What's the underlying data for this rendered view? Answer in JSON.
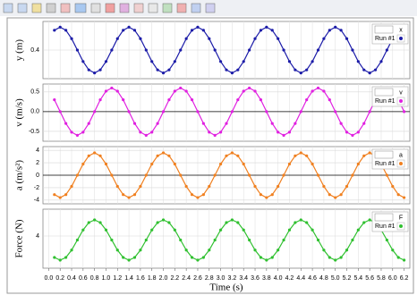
{
  "chart_data": [
    {
      "type": "line",
      "ylabel": "y (m)",
      "legend_symbol": "x",
      "x": [
        0.1,
        0.2,
        0.3,
        0.4,
        0.5,
        0.6,
        0.7,
        0.8,
        0.9,
        1.0,
        1.1,
        1.2,
        1.3,
        1.4,
        1.5,
        1.6,
        1.7,
        1.8,
        1.9,
        2.0,
        2.1,
        2.2,
        2.3,
        2.4,
        2.5,
        2.6,
        2.7,
        2.8,
        2.9,
        3.0,
        3.1,
        3.2,
        3.3,
        3.4,
        3.5,
        3.6,
        3.7,
        3.8,
        3.9,
        4.0,
        4.1,
        4.2,
        4.3,
        4.4,
        4.5,
        4.6,
        4.7,
        4.8,
        4.9,
        5.0,
        5.1,
        5.2,
        5.3,
        5.4,
        5.5,
        5.6,
        5.7,
        5.8,
        5.9,
        6.0,
        6.1,
        6.2
      ],
      "series": [
        {
          "name": "Run #1",
          "color": "#1c1ca8",
          "values": [
            0.504,
            0.52,
            0.504,
            0.46,
            0.4,
            0.34,
            0.296,
            0.28,
            0.296,
            0.34,
            0.4,
            0.46,
            0.504,
            0.52,
            0.504,
            0.46,
            0.4,
            0.34,
            0.296,
            0.28,
            0.296,
            0.34,
            0.4,
            0.46,
            0.504,
            0.52,
            0.504,
            0.46,
            0.4,
            0.34,
            0.296,
            0.28,
            0.296,
            0.34,
            0.4,
            0.46,
            0.504,
            0.52,
            0.504,
            0.46,
            0.4,
            0.34,
            0.296,
            0.28,
            0.296,
            0.34,
            0.4,
            0.46,
            0.504,
            0.52,
            0.504,
            0.46,
            0.4,
            0.34,
            0.296,
            0.28,
            0.296,
            0.34,
            0.4,
            0.46,
            0.504,
            0.52
          ]
        }
      ],
      "xlim": [
        -0.1,
        6.3
      ],
      "ylim": [
        0.25,
        0.55
      ],
      "yticks": [
        0.4
      ],
      "grid": true
    },
    {
      "type": "line",
      "ylabel": "v (m/s)",
      "legend_symbol": "v",
      "x": [
        0.1,
        0.2,
        0.3,
        0.4,
        0.5,
        0.6,
        0.7,
        0.8,
        0.9,
        1.0,
        1.1,
        1.2,
        1.3,
        1.4,
        1.5,
        1.6,
        1.7,
        1.8,
        1.9,
        2.0,
        2.1,
        2.2,
        2.3,
        2.4,
        2.5,
        2.6,
        2.7,
        2.8,
        2.9,
        3.0,
        3.1,
        3.2,
        3.3,
        3.4,
        3.5,
        3.6,
        3.7,
        3.8,
        3.9,
        4.0,
        4.1,
        4.2,
        4.3,
        4.4,
        4.5,
        4.6,
        4.7,
        4.8,
        4.9,
        5.0,
        5.1,
        5.2,
        5.3,
        5.4,
        5.5,
        5.6,
        5.7,
        5.8,
        5.9,
        6.0,
        6.1,
        6.2
      ],
      "series": [
        {
          "name": "Run #1",
          "color": "#e020e0",
          "values": [
            0.3,
            0,
            -0.3,
            -0.52,
            -0.6,
            -0.52,
            -0.3,
            0,
            0.3,
            0.52,
            0.6,
            0.52,
            0.3,
            0,
            -0.3,
            -0.52,
            -0.6,
            -0.52,
            -0.3,
            0,
            0.3,
            0.52,
            0.6,
            0.52,
            0.3,
            0,
            -0.3,
            -0.52,
            -0.6,
            -0.52,
            -0.3,
            0,
            0.3,
            0.52,
            0.6,
            0.52,
            0.3,
            0,
            -0.3,
            -0.52,
            -0.6,
            -0.52,
            -0.3,
            0,
            0.3,
            0.52,
            0.6,
            0.52,
            0.3,
            0,
            -0.3,
            -0.52,
            -0.6,
            -0.52,
            -0.3,
            0,
            0.3,
            0.52,
            0.6,
            0.52,
            0.3,
            0
          ]
        }
      ],
      "xlim": [
        -0.1,
        6.3
      ],
      "ylim": [
        -0.75,
        0.7
      ],
      "yticks": [
        -0.5,
        {
          "value": 0,
          "label": "0.0"
        },
        0.5
      ],
      "grid": true
    },
    {
      "type": "line",
      "ylabel": "a (m/s²)",
      "legend_symbol": "a",
      "x": [
        0.1,
        0.2,
        0.3,
        0.4,
        0.5,
        0.6,
        0.7,
        0.8,
        0.9,
        1.0,
        1.1,
        1.2,
        1.3,
        1.4,
        1.5,
        1.6,
        1.7,
        1.8,
        1.9,
        2.0,
        2.1,
        2.2,
        2.3,
        2.4,
        2.5,
        2.6,
        2.7,
        2.8,
        2.9,
        3.0,
        3.1,
        3.2,
        3.3,
        3.4,
        3.5,
        3.6,
        3.7,
        3.8,
        3.9,
        4.0,
        4.1,
        4.2,
        4.3,
        4.4,
        4.5,
        4.6,
        4.7,
        4.8,
        4.9,
        5.0,
        5.1,
        5.2,
        5.3,
        5.4,
        5.5,
        5.6,
        5.7,
        5.8,
        5.9,
        6.0,
        6.1,
        6.2
      ],
      "series": [
        {
          "name": "Run #1",
          "color": "#f08020",
          "values": [
            -3.12,
            -3.6,
            -3.12,
            -1.8,
            0,
            1.8,
            3.12,
            3.6,
            3.12,
            1.8,
            0,
            -1.8,
            -3.12,
            -3.6,
            -3.12,
            -1.8,
            0,
            1.8,
            3.12,
            3.6,
            3.12,
            1.8,
            0,
            -1.8,
            -3.12,
            -3.6,
            -3.12,
            -1.8,
            0,
            1.8,
            3.12,
            3.6,
            3.12,
            1.8,
            0,
            -1.8,
            -3.12,
            -3.6,
            -3.12,
            -1.8,
            0,
            1.8,
            3.12,
            3.6,
            3.12,
            1.8,
            0,
            -1.8,
            -3.12,
            -3.6,
            -3.12,
            -1.8,
            0,
            1.8,
            3.12,
            3.6,
            3.12,
            1.8,
            0,
            -1.8,
            -3.12,
            -3.6
          ]
        }
      ],
      "xlim": [
        -0.1,
        6.3
      ],
      "ylim": [
        -4.6,
        4.6
      ],
      "yticks": [
        -4,
        -2,
        0,
        2,
        4
      ],
      "grid": true
    },
    {
      "type": "line",
      "ylabel": "Force (N)",
      "legend_symbol": "F",
      "xlabel": "Time (s)",
      "x": [
        0.1,
        0.2,
        0.3,
        0.4,
        0.5,
        0.6,
        0.7,
        0.8,
        0.9,
        1.0,
        1.1,
        1.2,
        1.3,
        1.4,
        1.5,
        1.6,
        1.7,
        1.8,
        1.9,
        2.0,
        2.1,
        2.2,
        2.3,
        2.4,
        2.5,
        2.6,
        2.7,
        2.8,
        2.9,
        3.0,
        3.1,
        3.2,
        3.3,
        3.4,
        3.5,
        3.6,
        3.7,
        3.8,
        3.9,
        4.0,
        4.1,
        4.2,
        4.3,
        4.4,
        4.5,
        4.6,
        4.7,
        4.8,
        4.9,
        5.0,
        5.1,
        5.2,
        5.3,
        5.4,
        5.5,
        5.6,
        5.7,
        5.8,
        5.9,
        6.0,
        6.1,
        6.2
      ],
      "series": [
        {
          "name": "Run #1",
          "color": "#30c030",
          "values": [
            2.4,
            2.2,
            2.4,
            2.95,
            3.7,
            4.45,
            5.0,
            5.2,
            5.0,
            4.45,
            3.7,
            2.95,
            2.4,
            2.2,
            2.4,
            2.95,
            3.7,
            4.45,
            5.0,
            5.2,
            5.0,
            4.45,
            3.7,
            2.95,
            2.4,
            2.2,
            2.4,
            2.95,
            3.7,
            4.45,
            5.0,
            5.2,
            5.0,
            4.45,
            3.7,
            2.95,
            2.4,
            2.2,
            2.4,
            2.95,
            3.7,
            4.45,
            5.0,
            5.2,
            5.0,
            4.45,
            3.7,
            2.95,
            2.4,
            2.2,
            2.4,
            2.95,
            3.7,
            4.45,
            5.0,
            5.2,
            5.0,
            4.45,
            3.7,
            2.95,
            2.4,
            2.2
          ]
        }
      ],
      "xlim": [
        -0.1,
        6.3
      ],
      "ylim": [
        1.6,
        6.0
      ],
      "yticks": [
        4
      ],
      "xticks": [
        {
          "value": 0,
          "label": "0.0"
        },
        0.2,
        0.4,
        0.6,
        0.8,
        {
          "value": 1,
          "label": "1.0"
        },
        1.2,
        1.4,
        1.6,
        1.8,
        {
          "value": 2,
          "label": "2.0"
        },
        2.2,
        2.4,
        2.6,
        2.8,
        {
          "value": 3,
          "label": "3.0"
        },
        3.2,
        3.4,
        3.6,
        3.8,
        {
          "value": 4,
          "label": "4.0"
        },
        4.2,
        4.4,
        4.6,
        4.8,
        {
          "value": 5,
          "label": "5.0"
        },
        5.2,
        5.4,
        5.6,
        5.8,
        {
          "value": 6,
          "label": "6.0"
        },
        6.2
      ],
      "grid": true
    }
  ]
}
